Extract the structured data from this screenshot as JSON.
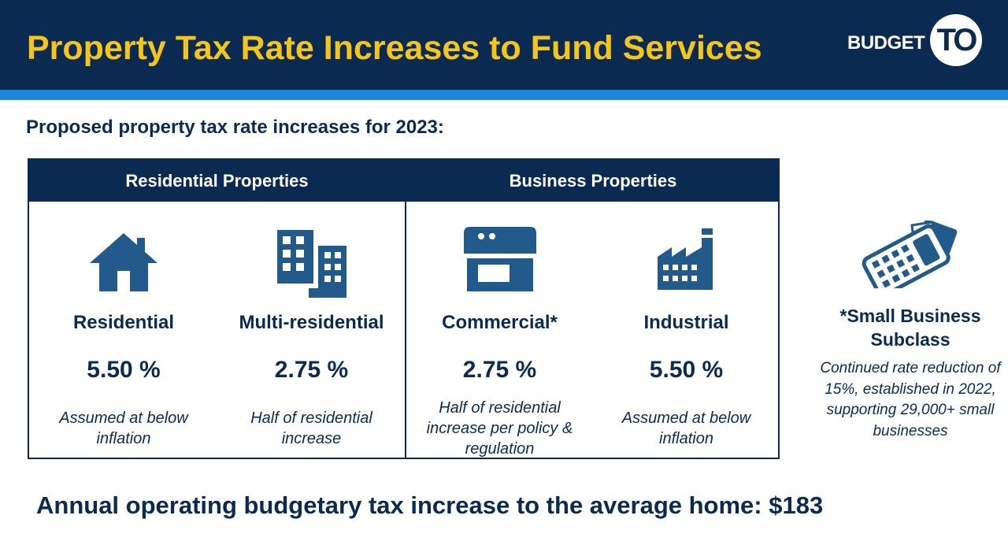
{
  "header": {
    "title": "Property Tax Rate Increases to Fund Services",
    "logo_text": "BUDGET",
    "logo_badge": "TO"
  },
  "subtitle": "Proposed property tax rate increases for 2023:",
  "table": {
    "groups": [
      {
        "label": "Residential Properties"
      },
      {
        "label": "Business Properties"
      }
    ],
    "columns": [
      {
        "name": "Residential",
        "rate": "5.50 %",
        "note": "Assumed at below inflation",
        "icon": "house-icon"
      },
      {
        "name": "Multi-residential",
        "rate": "2.75 %",
        "note": "Half of residential increase",
        "icon": "apartment-building-icon"
      },
      {
        "name": "Commercial*",
        "rate": "2.75 %",
        "note": "Half of residential increase per policy & regulation",
        "icon": "storefront-icon"
      },
      {
        "name": "Industrial",
        "rate": "5.50 %",
        "note": "Assumed at below inflation",
        "icon": "factory-icon"
      }
    ]
  },
  "sidebar": {
    "icon": "calculator-receipt-icon",
    "title": "*Small Business Subclass",
    "note": "Continued rate reduction of 15%, established in 2022, supporting 29,000+ small businesses"
  },
  "footer": "Annual operating budgetary tax increase to the average home: $183",
  "colors": {
    "navy": "#0b2a52",
    "accent_blue": "#1c86d9",
    "title_yellow": "#f5c518",
    "icon_blue": "#235a8c"
  }
}
